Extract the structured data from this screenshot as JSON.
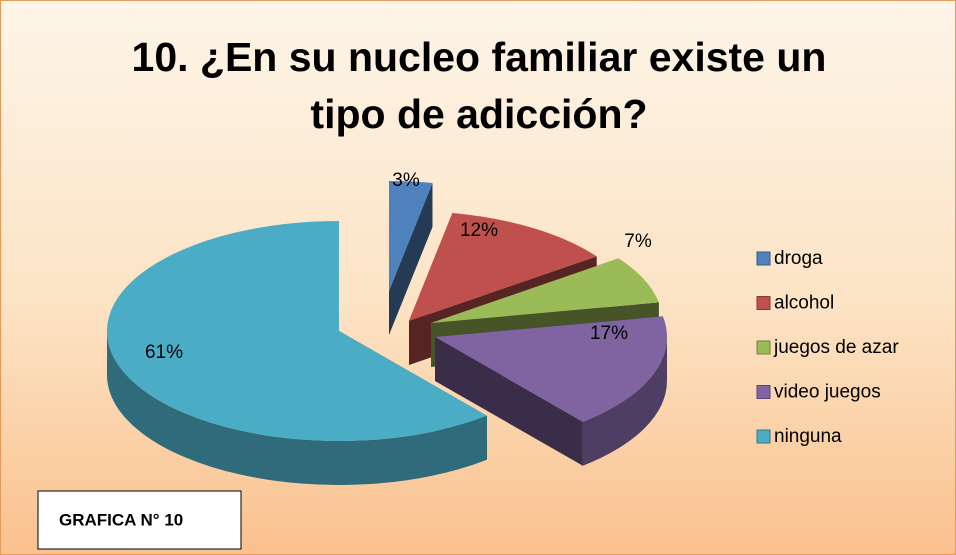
{
  "chart_data": {
    "type": "pie",
    "title": "10. ¿En su nucleo familiar existe un tipo de adicción?",
    "categories": [
      "droga",
      "alcohol",
      "juegos de azar",
      "video juegos",
      "ninguna"
    ],
    "values": [
      3,
      12,
      7,
      17,
      61
    ],
    "value_labels": [
      "3%",
      "12%",
      "7%",
      "17%",
      "61%"
    ],
    "colors": [
      "#4f81bd",
      "#c0504d",
      "#9bbb59",
      "#8064a2",
      "#4bacc6"
    ],
    "legend": "right",
    "annotation": "GRAFICA N° 10"
  }
}
